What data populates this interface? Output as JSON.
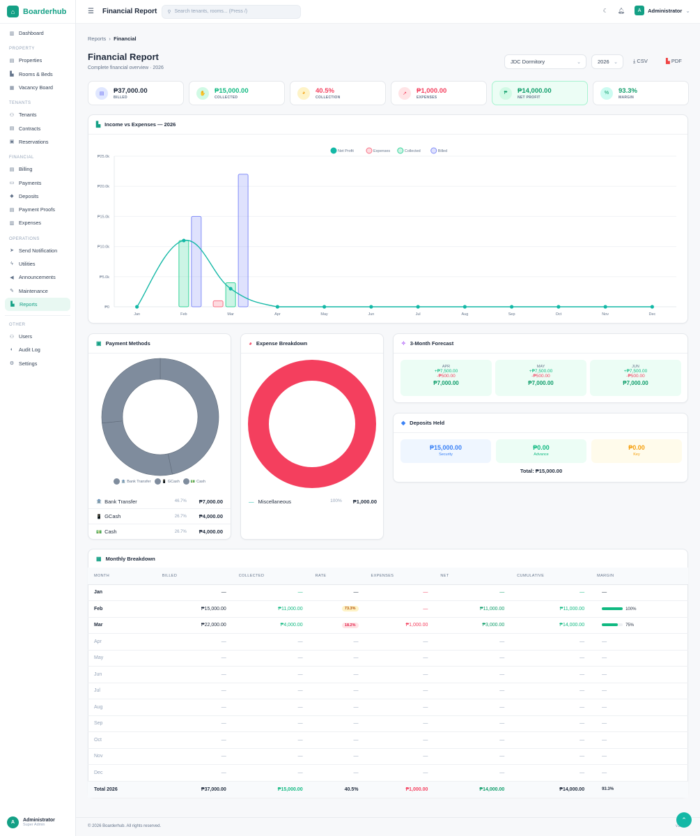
{
  "app": {
    "brand": "Boarderhub",
    "page_title": "Financial Report",
    "search_placeholder": "Search tenants, rooms... (Press /)",
    "user": "Administrator",
    "user_role": "Super Admin",
    "user_initial": "A"
  },
  "sidebar": [
    {
      "type": "item",
      "label": "Dashboard",
      "icon": "▥"
    },
    {
      "type": "section",
      "label": "PROPERTY"
    },
    {
      "type": "item",
      "label": "Properties",
      "icon": "▤"
    },
    {
      "type": "item",
      "label": "Rooms & Beds",
      "icon": "▙"
    },
    {
      "type": "item",
      "label": "Vacancy Board",
      "icon": "▦"
    },
    {
      "type": "section",
      "label": "TENANTS"
    },
    {
      "type": "item",
      "label": "Tenants",
      "icon": "⚇"
    },
    {
      "type": "item",
      "label": "Contracts",
      "icon": "▤"
    },
    {
      "type": "item",
      "label": "Reservations",
      "icon": "▣"
    },
    {
      "type": "section",
      "label": "FINANCIAL"
    },
    {
      "type": "item",
      "label": "Billing",
      "icon": "▤"
    },
    {
      "type": "item",
      "label": "Payments",
      "icon": "▭"
    },
    {
      "type": "item",
      "label": "Deposits",
      "icon": "◆"
    },
    {
      "type": "item",
      "label": "Payment Proofs",
      "icon": "▤"
    },
    {
      "type": "item",
      "label": "Expenses",
      "icon": "▥"
    },
    {
      "type": "section",
      "label": "OPERATIONS"
    },
    {
      "type": "item",
      "label": "Send Notification",
      "icon": "➤"
    },
    {
      "type": "item",
      "label": "Utilities",
      "icon": "ϟ"
    },
    {
      "type": "item",
      "label": "Announcements",
      "icon": "◀"
    },
    {
      "type": "item",
      "label": "Maintenance",
      "icon": "✎"
    },
    {
      "type": "item",
      "label": "Reports",
      "icon": "▙",
      "active": true
    },
    {
      "type": "divider"
    },
    {
      "type": "section",
      "label": "OTHER"
    },
    {
      "type": "item",
      "label": "Users",
      "icon": "⚇"
    },
    {
      "type": "item",
      "label": "Audit Log",
      "icon": "◐"
    },
    {
      "type": "item",
      "label": "Settings",
      "icon": "⚙"
    }
  ],
  "header": {
    "breadcrumb": [
      "Reports",
      "Financial"
    ],
    "title": "Financial Report",
    "subtitle": "Complete financial overview · 2026",
    "property_select": "JDC Dormitory",
    "year_select": "2026",
    "csv_label": "CSV",
    "pdf_label": "PDF"
  },
  "stats": [
    {
      "value": "₱37,000.00",
      "label": "BILLED",
      "color": "#1e293b",
      "bg": "#e0e7ff",
      "fg": "#6366f1",
      "icon": "▤"
    },
    {
      "value": "₱15,000.00",
      "label": "COLLECTED",
      "color": "#10b981",
      "bg": "#d1fae5",
      "fg": "#10b981",
      "icon": "✋"
    },
    {
      "value": "40.5%",
      "label": "COLLECTION",
      "color": "#f43f5e",
      "bg": "#fef3c7",
      "fg": "#f59e0b",
      "icon": "◕"
    },
    {
      "value": "₱1,000.00",
      "label": "EXPENSES",
      "color": "#f43f5e",
      "bg": "#ffe4e6",
      "fg": "#f43f5e",
      "icon": "↗"
    },
    {
      "value": "₱14,000.00",
      "label": "NET PROFIT",
      "color": "#0f9d6a",
      "bg": "#d1fae5",
      "fg": "#0f9d6a",
      "icon": "₱",
      "highlight": true
    },
    {
      "value": "93.3%",
      "label": "MARGIN",
      "color": "#0f9d6a",
      "bg": "#ccfbf1",
      "fg": "#0f9d6a",
      "icon": "%"
    }
  ],
  "chart_title": "Income vs Expenses — 2026",
  "chart_data": {
    "type": "bar",
    "categories": [
      "Jan",
      "Feb",
      "Mar",
      "Apr",
      "May",
      "Jun",
      "Jul",
      "Aug",
      "Sep",
      "Oct",
      "Nov",
      "Dec"
    ],
    "ylim": [
      0,
      25000
    ],
    "yticks": [
      "₱0",
      "₱5.0k",
      "₱10.0k",
      "₱15.0k",
      "₱20.0k",
      "₱25.0k"
    ],
    "grid": true,
    "legend_position": "top",
    "series": [
      {
        "name": "Net Profit",
        "kind": "line",
        "color": "#14b8a6",
        "values": [
          0,
          11000,
          3000,
          0,
          0,
          0,
          0,
          0,
          0,
          0,
          0,
          0
        ]
      },
      {
        "name": "Expenses",
        "kind": "bar",
        "color": "#f87185",
        "values": [
          0,
          0,
          1000,
          0,
          0,
          0,
          0,
          0,
          0,
          0,
          0,
          0
        ]
      },
      {
        "name": "Collected",
        "kind": "bar",
        "color": "#34d399",
        "values": [
          0,
          11000,
          4000,
          0,
          0,
          0,
          0,
          0,
          0,
          0,
          0,
          0
        ]
      },
      {
        "name": "Billed",
        "kind": "bar",
        "color": "#818cf8",
        "values": [
          0,
          15000,
          22000,
          0,
          0,
          0,
          0,
          0,
          0,
          0,
          0,
          0
        ]
      }
    ]
  },
  "payment_methods": {
    "title": "Payment Methods",
    "items": [
      {
        "label": "Bank Transfer",
        "icon": "🏦",
        "pct": "46.7%",
        "amount": "₱7,000.00",
        "value": 7000
      },
      {
        "label": "GCash",
        "icon": "📱",
        "pct": "26.7%",
        "amount": "₱4,000.00",
        "value": 4000
      },
      {
        "label": "Cash",
        "icon": "💵",
        "pct": "26.7%",
        "amount": "₱4,000.00",
        "value": 4000
      }
    ],
    "color": "#7f8c9d"
  },
  "expense_breakdown": {
    "title": "Expense Breakdown",
    "items": [
      {
        "label": "Miscellaneous",
        "pct": "100%",
        "amount": "₱1,000.00",
        "value": 1000
      }
    ],
    "color": "#f43f5e"
  },
  "forecast": {
    "title": "3-Month Forecast",
    "months": [
      {
        "month": "APR",
        "income": "+₱7,500.00",
        "expense": "-₱500.00",
        "net": "₱7,000.00"
      },
      {
        "month": "MAY",
        "income": "+₱7,500.00",
        "expense": "-₱500.00",
        "net": "₱7,000.00"
      },
      {
        "month": "JUN",
        "income": "+₱7,500.00",
        "expense": "-₱500.00",
        "net": "₱7,000.00"
      }
    ]
  },
  "deposits": {
    "title": "Deposits Held",
    "items": [
      {
        "value": "₱15,000.00",
        "label": "Security",
        "bg": "#eff6ff",
        "fg": "#3b82f6"
      },
      {
        "value": "₱0.00",
        "label": "Advance",
        "bg": "#ecfdf5",
        "fg": "#10b981"
      },
      {
        "value": "₱0.00",
        "label": "Key",
        "bg": "#fffbeb",
        "fg": "#f59e0b"
      }
    ],
    "total": "Total: ₱15,000.00"
  },
  "monthly": {
    "title": "Monthly Breakdown",
    "columns": [
      "MONTH",
      "BILLED",
      "COLLECTED",
      "RATE",
      "EXPENSES",
      "NET",
      "CUMULATIVE",
      "MARGIN"
    ],
    "rows": [
      {
        "month": "Jan",
        "billed": "—",
        "collected": "—",
        "rate": "—",
        "expenses": "—",
        "net": "—",
        "cumulative": "—",
        "margin": "—"
      },
      {
        "month": "Feb",
        "billed": "₱15,000.00",
        "collected": "₱11,000.00",
        "rate": "73.3%",
        "rate_tone": "warn",
        "expenses": "—",
        "net": "₱11,000.00",
        "cumulative": "₱11,000.00",
        "margin": "100%",
        "margin_pct": 100
      },
      {
        "month": "Mar",
        "billed": "₱22,000.00",
        "collected": "₱4,000.00",
        "rate": "18.2%",
        "rate_tone": "bad",
        "expenses": "₱1,000.00",
        "net": "₱3,000.00",
        "cumulative": "₱14,000.00",
        "margin": "75%",
        "margin_pct": 75
      },
      {
        "month": "Apr",
        "dim": true
      },
      {
        "month": "May",
        "dim": true
      },
      {
        "month": "Jun",
        "dim": true
      },
      {
        "month": "Jul",
        "dim": true
      },
      {
        "month": "Aug",
        "dim": true
      },
      {
        "month": "Sep",
        "dim": true
      },
      {
        "month": "Oct",
        "dim": true
      },
      {
        "month": "Nov",
        "dim": true
      },
      {
        "month": "Dec",
        "dim": true
      }
    ],
    "total": {
      "month": "Total 2026",
      "billed": "₱37,000.00",
      "collected": "₱15,000.00",
      "rate": "40.5%",
      "expenses": "₱1,000.00",
      "net": "₱14,000.00",
      "cumulative": "₱14,000.00",
      "margin": "93.3%"
    }
  },
  "footer": {
    "copyright": "© 2026 Boarderhub. All rights reserved.",
    "version": "v1.0.0"
  }
}
